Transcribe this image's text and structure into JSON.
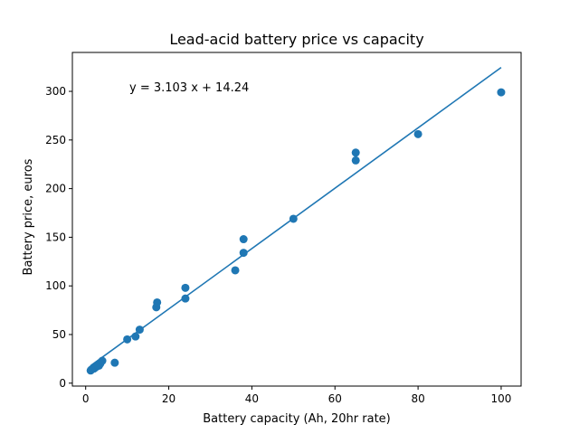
{
  "chart_data": {
    "type": "scatter",
    "title": "Lead-acid battery price vs capacity",
    "xlabel": "Battery capacity (Ah, 20hr rate)",
    "ylabel": "Battery price, euros",
    "xlim": [
      -3.2,
      104.8
    ],
    "ylim": [
      -3,
      340
    ],
    "xticks": [
      0,
      20,
      40,
      60,
      80,
      100
    ],
    "yticks": [
      0,
      50,
      100,
      150,
      200,
      250,
      300
    ],
    "grid": false,
    "annotation": "y = 3.103 x + 14.24",
    "points": [
      {
        "x": 1.2,
        "y": 13
      },
      {
        "x": 1.4,
        "y": 14
      },
      {
        "x": 1.7,
        "y": 15
      },
      {
        "x": 2.0,
        "y": 15
      },
      {
        "x": 2.3,
        "y": 16
      },
      {
        "x": 2.6,
        "y": 17
      },
      {
        "x": 2.9,
        "y": 18
      },
      {
        "x": 3.2,
        "y": 18
      },
      {
        "x": 3.5,
        "y": 20
      },
      {
        "x": 4.0,
        "y": 23
      },
      {
        "x": 7.0,
        "y": 21
      },
      {
        "x": 10.0,
        "y": 45
      },
      {
        "x": 12.0,
        "y": 48
      },
      {
        "x": 13.0,
        "y": 55
      },
      {
        "x": 17.0,
        "y": 78
      },
      {
        "x": 17.2,
        "y": 83
      },
      {
        "x": 24.0,
        "y": 87
      },
      {
        "x": 24.0,
        "y": 98
      },
      {
        "x": 36.0,
        "y": 116
      },
      {
        "x": 38.0,
        "y": 134
      },
      {
        "x": 38.0,
        "y": 148
      },
      {
        "x": 50.0,
        "y": 169
      },
      {
        "x": 65.0,
        "y": 229
      },
      {
        "x": 65.0,
        "y": 237
      },
      {
        "x": 80.0,
        "y": 256
      },
      {
        "x": 100.0,
        "y": 299
      }
    ],
    "fit_line": {
      "slope": 3.103,
      "intercept": 14.24,
      "x_range": [
        1.2,
        100
      ]
    },
    "colors": {
      "marker": "#1f77b4",
      "line": "#1f77b4",
      "axes": "#000000"
    }
  }
}
